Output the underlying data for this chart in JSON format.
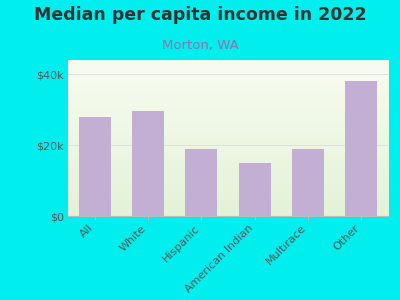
{
  "title": "Median per capita income in 2022",
  "subtitle": "Morton, WA",
  "categories": [
    "All",
    "White",
    "Hispanic",
    "American Indian",
    "Multirace",
    "Other"
  ],
  "values": [
    28000,
    29500,
    19000,
    15000,
    19000,
    38000
  ],
  "bar_color": "#c4afd4",
  "background_color": "#00EEEE",
  "plot_bg_top": "#f5f8ee",
  "plot_bg_bottom": "#e8f5e0",
  "title_color": "#333333",
  "subtitle_color": "#8877aa",
  "axis_label_color": "#555555",
  "ylabel_ticks": [
    0,
    20000,
    40000
  ],
  "ylabel_labels": [
    "$0",
    "$20k",
    "$40k"
  ],
  "ylim": [
    0,
    44000
  ],
  "title_fontsize": 12.5,
  "subtitle_fontsize": 9.5,
  "tick_fontsize": 8
}
